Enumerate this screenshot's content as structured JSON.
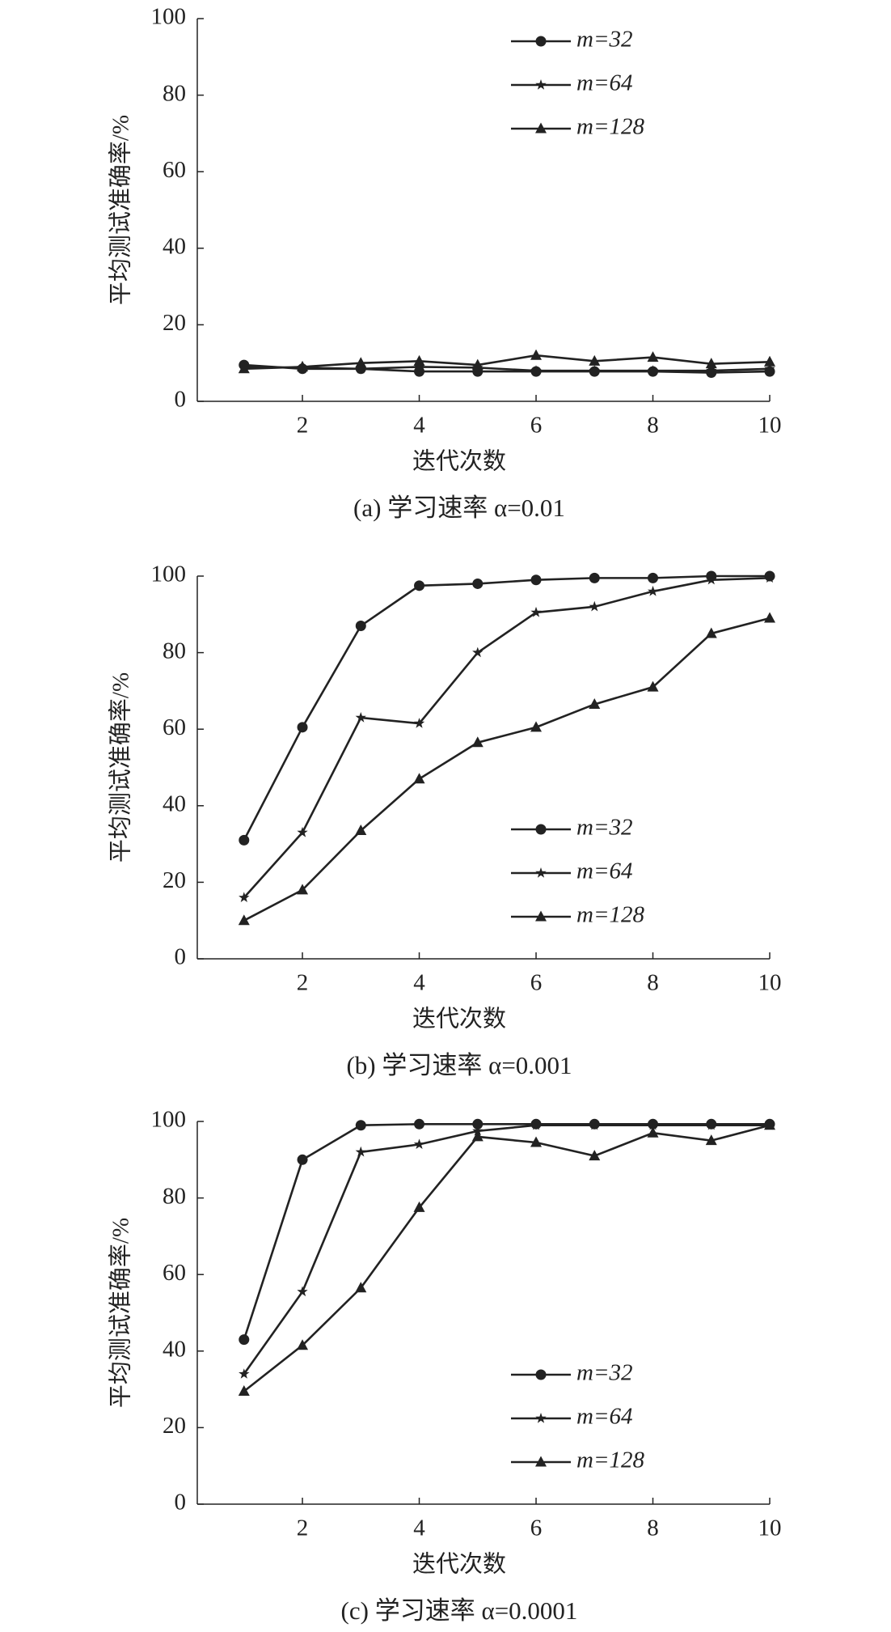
{
  "chart_data": [
    {
      "type": "line",
      "title": "(a) 学习速率 α=0.01",
      "xlabel": "迭代次数",
      "ylabel": "平均测试准确率/%",
      "x": [
        1,
        2,
        3,
        4,
        5,
        6,
        7,
        8,
        9,
        10
      ],
      "xlim": [
        0.2,
        10
      ],
      "xticks": [
        2,
        4,
        6,
        8,
        10
      ],
      "ylim": [
        0,
        100
      ],
      "yticks": [
        0,
        20,
        40,
        60,
        80,
        100
      ],
      "legend": "upper right",
      "series": [
        {
          "name": "m=32",
          "color": "#222222",
          "marker": "circle",
          "values": [
            9.5,
            8.5,
            8.5,
            7.8,
            7.8,
            7.8,
            7.8,
            7.8,
            7.5,
            7.8
          ]
        },
        {
          "name": "m=64",
          "color": "#222222",
          "marker": "star",
          "values": [
            9,
            8.8,
            8.5,
            9,
            8.8,
            8,
            8,
            8,
            8,
            8.5
          ]
        },
        {
          "name": "m=128",
          "color": "#222222",
          "marker": "triangle",
          "values": [
            8.5,
            9,
            10,
            10.5,
            9.5,
            12,
            10.5,
            11.5,
            9.8,
            10.3
          ]
        }
      ]
    },
    {
      "type": "line",
      "title": "(b) 学习速率 α=0.001",
      "xlabel": "迭代次数",
      "ylabel": "平均测试准确率/%",
      "x": [
        1,
        2,
        3,
        4,
        5,
        6,
        7,
        8,
        9,
        10
      ],
      "xlim": [
        0.2,
        10
      ],
      "xticks": [
        2,
        4,
        6,
        8,
        10
      ],
      "ylim": [
        0,
        100
      ],
      "yticks": [
        0,
        20,
        40,
        60,
        80,
        100
      ],
      "legend": "lower right",
      "series": [
        {
          "name": "m=32",
          "color": "#222222",
          "marker": "circle",
          "values": [
            31,
            60.5,
            87,
            97.5,
            98,
            99,
            99.5,
            99.5,
            100,
            100
          ]
        },
        {
          "name": "m=64",
          "color": "#222222",
          "marker": "star",
          "values": [
            16,
            33,
            63,
            61.5,
            80,
            90.5,
            92,
            96,
            99,
            99.5
          ]
        },
        {
          "name": "m=128",
          "color": "#222222",
          "marker": "triangle",
          "values": [
            10,
            18,
            33.5,
            47,
            56.5,
            60.5,
            66.5,
            71,
            85,
            89
          ]
        }
      ]
    },
    {
      "type": "line",
      "title": "(c) 学习速率 α=0.0001",
      "xlabel": "迭代次数",
      "ylabel": "平均测试准确率/%",
      "x": [
        1,
        2,
        3,
        4,
        5,
        6,
        7,
        8,
        9,
        10
      ],
      "xlim": [
        0.2,
        10
      ],
      "xticks": [
        2,
        4,
        6,
        8,
        10
      ],
      "ylim": [
        0,
        100
      ],
      "yticks": [
        0,
        20,
        40,
        60,
        80,
        100
      ],
      "legend": "lower right",
      "series": [
        {
          "name": "m=32",
          "color": "#222222",
          "marker": "circle",
          "values": [
            43,
            90,
            99,
            99.3,
            99.3,
            99.3,
            99.3,
            99.3,
            99.3,
            99.3
          ]
        },
        {
          "name": "m=64",
          "color": "#222222",
          "marker": "star",
          "values": [
            34,
            55.5,
            92,
            94,
            97.5,
            99,
            99,
            99,
            99,
            99
          ]
        },
        {
          "name": "m=128",
          "color": "#222222",
          "marker": "triangle",
          "values": [
            29.5,
            41.5,
            56.5,
            77.5,
            96,
            94.5,
            91,
            97,
            95,
            99
          ]
        }
      ]
    }
  ]
}
